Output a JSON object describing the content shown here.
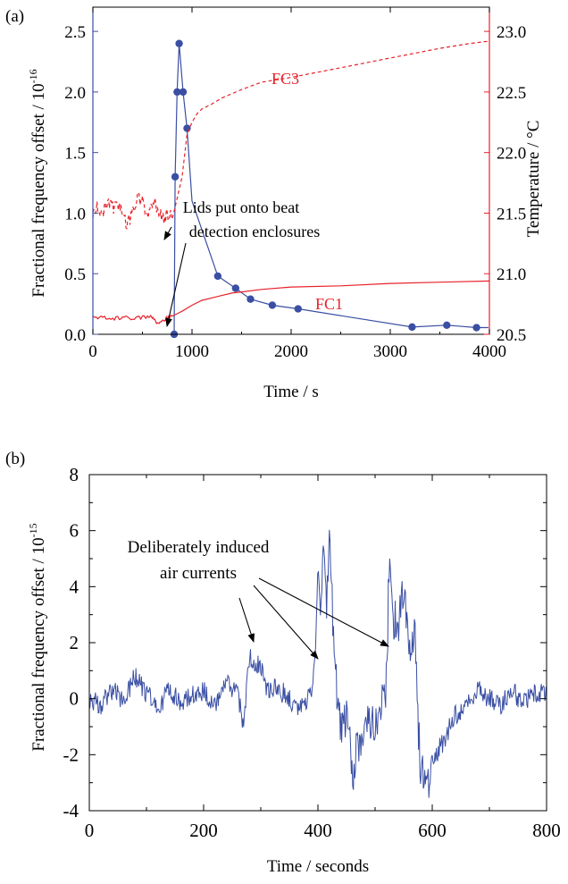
{
  "chart_data": [
    {
      "panel_label": "(a)",
      "type": "line",
      "xlabel": "Time / s",
      "ylabel": "Fractional frequency offset / 10",
      "ylabel_exp": "-16",
      "y2label": "Temperature / °C",
      "xlim": [
        0,
        4000
      ],
      "ylim": [
        0,
        2.7
      ],
      "y2lim": [
        20.5,
        23.2
      ],
      "xticks": [
        0,
        1000,
        2000,
        3000,
        4000
      ],
      "xtick_labels": [
        "0",
        "1000",
        "2000",
        "3000",
        "4000"
      ],
      "yticks": [
        0.0,
        0.5,
        1.0,
        1.5,
        2.0,
        2.5
      ],
      "ytick_labels": [
        "0.0",
        "0.5",
        "1.0",
        "1.5",
        "2.0",
        "2.5"
      ],
      "y2ticks": [
        20.5,
        21.0,
        21.5,
        22.0,
        22.5,
        23.0
      ],
      "y2tick_labels": [
        "20.5",
        "21.0",
        "21.5",
        "22.0",
        "22.5",
        "23.0"
      ],
      "colors": {
        "offset": "#3a4fa3",
        "temperature": "#e8212a",
        "left_axis": "#3a4fa3",
        "right_axis": "#e8212a"
      },
      "series": [
        {
          "axis": "left",
          "style": "line+markers",
          "color": "#3a4fa3",
          "x": [
            820,
            830,
            850,
            870,
            910,
            950,
            1000,
            1260,
            1440,
            1590,
            1810,
            2070,
            3220,
            3570,
            3870,
            3990
          ],
          "y": [
            0.0,
            1.3,
            2.0,
            2.4,
            2.0,
            1.7,
            1.1,
            0.48,
            0.38,
            0.29,
            0.24,
            0.21,
            0.06,
            0.075,
            0.055,
            0.055
          ],
          "markers_x": [
            820,
            830,
            850,
            870,
            910,
            950,
            1260,
            1440,
            1590,
            1810,
            2070,
            3220,
            3570,
            3870
          ],
          "markers_y": [
            0.0,
            1.3,
            2.0,
            2.4,
            2.0,
            1.7,
            0.48,
            0.38,
            0.29,
            0.24,
            0.21,
            0.06,
            0.075,
            0.055
          ]
        },
        {
          "name": "FC3",
          "axis": "right",
          "style": "dashed",
          "color": "#e8212a",
          "x": [
            0,
            50,
            100,
            150,
            200,
            250,
            300,
            350,
            400,
            450,
            500,
            550,
            600,
            650,
            700,
            750,
            800,
            850,
            900,
            950,
            1000,
            1050,
            1100,
            1200,
            1300,
            1500,
            1700,
            2000,
            2500,
            3000,
            3500,
            3800,
            4000
          ],
          "y": [
            21.5,
            21.55,
            21.5,
            21.6,
            21.55,
            21.58,
            21.5,
            21.4,
            21.52,
            21.65,
            21.6,
            21.5,
            21.58,
            21.55,
            21.45,
            21.5,
            21.45,
            21.62,
            21.8,
            22.15,
            22.25,
            22.32,
            22.36,
            22.4,
            22.45,
            22.52,
            22.58,
            22.62,
            22.7,
            22.78,
            22.86,
            22.9,
            22.92
          ],
          "label_position": "above curve near x=1250"
        },
        {
          "name": "FC1",
          "axis": "right",
          "style": "solid",
          "color": "#e8212a",
          "x": [
            0,
            100,
            200,
            300,
            400,
            500,
            600,
            650,
            700,
            750,
            800,
            850,
            900,
            1000,
            1100,
            1200,
            1300,
            1400,
            1500,
            1700,
            2000,
            2500,
            3000,
            3500,
            4000
          ],
          "y": [
            20.64,
            20.64,
            20.63,
            20.64,
            20.63,
            20.64,
            20.64,
            20.59,
            20.62,
            20.63,
            20.65,
            20.67,
            20.69,
            20.74,
            20.78,
            20.8,
            20.82,
            20.84,
            20.85,
            20.87,
            20.89,
            20.9,
            20.92,
            20.93,
            20.94
          ],
          "label_position": "above curve near x=2600"
        }
      ],
      "annotations": [
        {
          "lines": [
            "Lids put onto beat",
            "detection enclosures"
          ],
          "arrows_to": [
            [
              720,
              21.45
            ],
            [
              740,
              20.58
            ]
          ]
        }
      ]
    },
    {
      "panel_label": "(b)",
      "type": "line",
      "xlabel": "Time / seconds",
      "ylabel": "Fractional frequency offset / 10",
      "ylabel_exp": "-15",
      "xlim": [
        0,
        800
      ],
      "ylim": [
        -4,
        8
      ],
      "xticks": [
        0,
        200,
        400,
        600,
        800
      ],
      "xtick_labels": [
        "0",
        "200",
        "400",
        "600",
        "800"
      ],
      "yticks": [
        -4,
        -2,
        0,
        2,
        4,
        6,
        8
      ],
      "ytick_labels": [
        "-4",
        "-2",
        "0",
        "2",
        "4",
        "6",
        "8"
      ],
      "color": "#3a4fa3",
      "series": [
        {
          "style": "noisy line",
          "color": "#3a4fa3",
          "x": [
            0,
            20,
            40,
            60,
            80,
            100,
            120,
            140,
            160,
            180,
            200,
            220,
            240,
            260,
            270,
            280,
            290,
            300,
            310,
            320,
            340,
            360,
            380,
            390,
            395,
            400,
            405,
            410,
            415,
            420,
            425,
            430,
            440,
            450,
            460,
            470,
            480,
            490,
            500,
            510,
            520,
            525,
            530,
            540,
            550,
            560,
            570,
            575,
            580,
            590,
            600,
            620,
            640,
            660,
            680,
            700,
            720,
            740,
            760,
            780,
            800
          ],
          "y": [
            0.0,
            -0.2,
            0.3,
            -0.1,
            0.8,
            0.2,
            -0.4,
            0.4,
            -0.2,
            0.1,
            0.3,
            -0.3,
            0.5,
            0.2,
            -1.0,
            1.5,
            1.0,
            1.3,
            0.3,
            0.4,
            0.2,
            -0.3,
            -0.1,
            0.4,
            1.6,
            4.8,
            3.5,
            5.5,
            2.8,
            6.0,
            3.2,
            1.2,
            -1.3,
            -0.4,
            -2.7,
            -1.5,
            -1.2,
            -0.6,
            -0.8,
            -0.2,
            0.5,
            5.5,
            3.0,
            2.5,
            3.8,
            1.8,
            2.8,
            -0.9,
            -2.5,
            -3.2,
            -2.2,
            -1.5,
            -0.6,
            -0.3,
            0.4,
            0.0,
            -0.2,
            0.3,
            -0.2,
            0.2,
            0.3
          ]
        }
      ],
      "annotations": [
        {
          "lines": [
            "Deliberately induced",
            "air currents"
          ],
          "arrows_to": [
            [
              293,
              1.8
            ],
            [
              395,
              0.8
            ],
            [
              525,
              2.0
            ]
          ]
        }
      ]
    }
  ]
}
